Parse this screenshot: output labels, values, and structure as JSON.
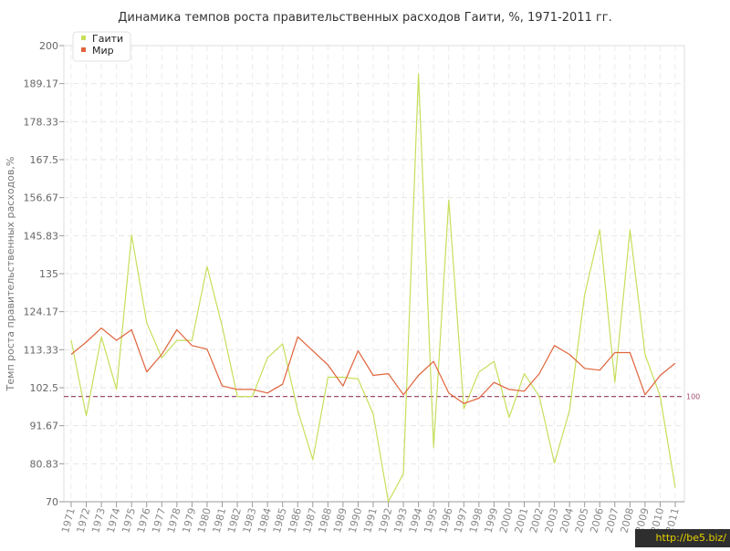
{
  "chart_data": {
    "type": "line",
    "title": "Динамика темпов роста правительственных расходов Гаити, %, 1971-2011 гг.",
    "ylabel": "Темп роста правительственных расходов,%",
    "xlabel": "",
    "ylim": [
      70,
      200
    ],
    "y_ticks": [
      "70",
      "80.83",
      "91.67",
      "102.5",
      "113.33",
      "124.17",
      "135",
      "145.83",
      "156.67",
      "167.5",
      "178.33",
      "189.17",
      "200"
    ],
    "x": [
      1971,
      1972,
      1973,
      1974,
      1975,
      1976,
      1977,
      1978,
      1979,
      1980,
      1981,
      1982,
      1983,
      1984,
      1985,
      1986,
      1987,
      1988,
      1989,
      1990,
      1991,
      1992,
      1993,
      1994,
      1995,
      1996,
      1997,
      1998,
      1999,
      2000,
      2001,
      2002,
      2003,
      2004,
      2005,
      2006,
      2007,
      2008,
      2009,
      2010,
      2011
    ],
    "series": [
      {
        "name": "Гаити",
        "color": "#c6df5b",
        "values": [
          116,
          94.5,
          117,
          102,
          146,
          121,
          111,
          116,
          116,
          137,
          120,
          100,
          100,
          111,
          115,
          96,
          82,
          105.5,
          105.5,
          105,
          95,
          70,
          78,
          192,
          85.5,
          156,
          96.5,
          107,
          110,
          94,
          106.5,
          100,
          81,
          96,
          129,
          147.5,
          104,
          147.5,
          112,
          100,
          74
        ]
      },
      {
        "name": "Мир",
        "color": "#e0643c",
        "values": [
          112,
          115.5,
          119.5,
          116,
          119,
          107,
          112,
          119,
          114.5,
          113.5,
          103,
          102,
          102,
          101,
          103.5,
          117,
          113,
          109,
          103,
          113,
          106,
          106.5,
          100.5,
          106,
          110,
          101,
          98,
          99.5,
          104,
          102,
          101.5,
          106.5,
          114.5,
          112,
          108,
          107.5,
          112.5,
          112.5,
          100.5,
          106,
          109.5
        ]
      }
    ],
    "reference_line": {
      "value": 100,
      "label": "100",
      "color": "#a04c6e"
    },
    "grid": true,
    "legend": "top-left"
  },
  "watermark": "http://be5.biz/"
}
